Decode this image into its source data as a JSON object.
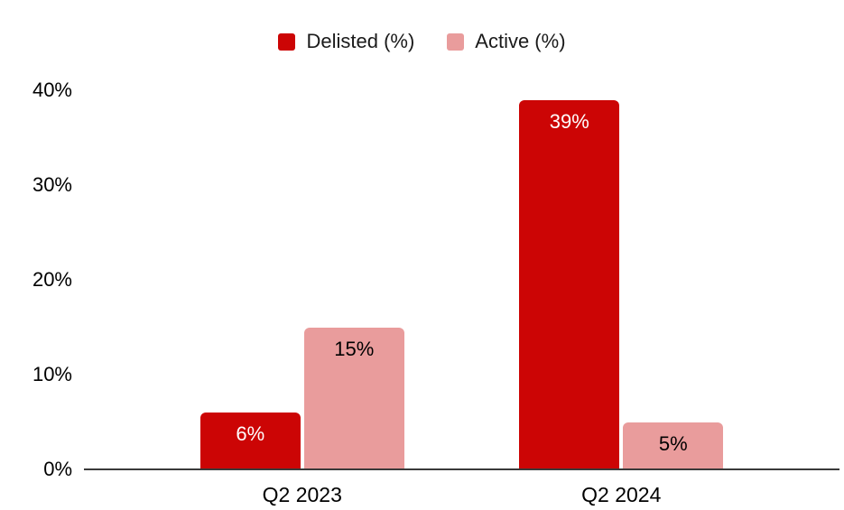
{
  "chart_data": {
    "type": "bar",
    "title": "",
    "xlabel": "",
    "ylabel": "",
    "categories": [
      "Q2 2023",
      "Q2 2024"
    ],
    "series": [
      {
        "name": "Delisted (%)",
        "color": "#CC0505",
        "label_color": "#FFFFFF",
        "values": [
          6,
          39
        ],
        "value_labels": [
          "6%",
          "39%"
        ]
      },
      {
        "name": "Active (%)",
        "color": "#E99C9C",
        "label_color": "#000000",
        "values": [
          15,
          5
        ],
        "value_labels": [
          "15%",
          "5%"
        ]
      }
    ],
    "y_ticks": [
      "0%",
      "10%",
      "20%",
      "30%",
      "40%"
    ],
    "y_tick_values": [
      0,
      10,
      20,
      30,
      40
    ],
    "ylim": [
      0,
      40
    ],
    "grid": false,
    "legend_position": "top"
  },
  "colors": {
    "axis": "#3A3A3A",
    "text": "#000000",
    "background": "#FFFFFF"
  }
}
